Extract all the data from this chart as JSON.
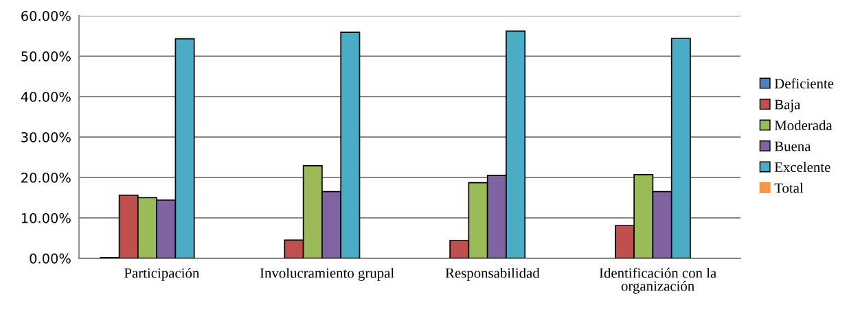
{
  "chart_data": {
    "type": "bar",
    "categories": [
      "Participación",
      "Involucramiento grupal",
      "Responsabilidad",
      "Identificación con la organización"
    ],
    "series": [
      {
        "name": "Deficiente",
        "color": "#4f81bd",
        "values": [
          0.2,
          null,
          null,
          null
        ]
      },
      {
        "name": "Baja",
        "color": "#c0504d",
        "values": [
          15.6,
          4.5,
          4.4,
          8.1
        ]
      },
      {
        "name": "Moderada",
        "color": "#9bbb59",
        "values": [
          15.0,
          22.9,
          18.7,
          20.7
        ]
      },
      {
        "name": "Buena",
        "color": "#8064a2",
        "values": [
          14.4,
          16.5,
          20.5,
          16.5
        ]
      },
      {
        "name": "Excelente",
        "color": "#4bacc6",
        "values": [
          54.3,
          55.9,
          56.2,
          54.4
        ]
      },
      {
        "name": "Total",
        "color": "#f79646",
        "values": [
          null,
          null,
          null,
          null
        ]
      }
    ],
    "ylim": [
      0,
      60
    ],
    "yticks": [
      {
        "value": 0,
        "label": "0.00%"
      },
      {
        "value": 10,
        "label": "10.00%"
      },
      {
        "value": 20,
        "label": "20.00%"
      },
      {
        "value": 30,
        "label": "30.00%"
      },
      {
        "value": 40,
        "label": "40.00%"
      },
      {
        "value": 50,
        "label": "50.00%"
      },
      {
        "value": 60,
        "label": "60.00%"
      }
    ],
    "grid": "y",
    "legend": "right"
  }
}
